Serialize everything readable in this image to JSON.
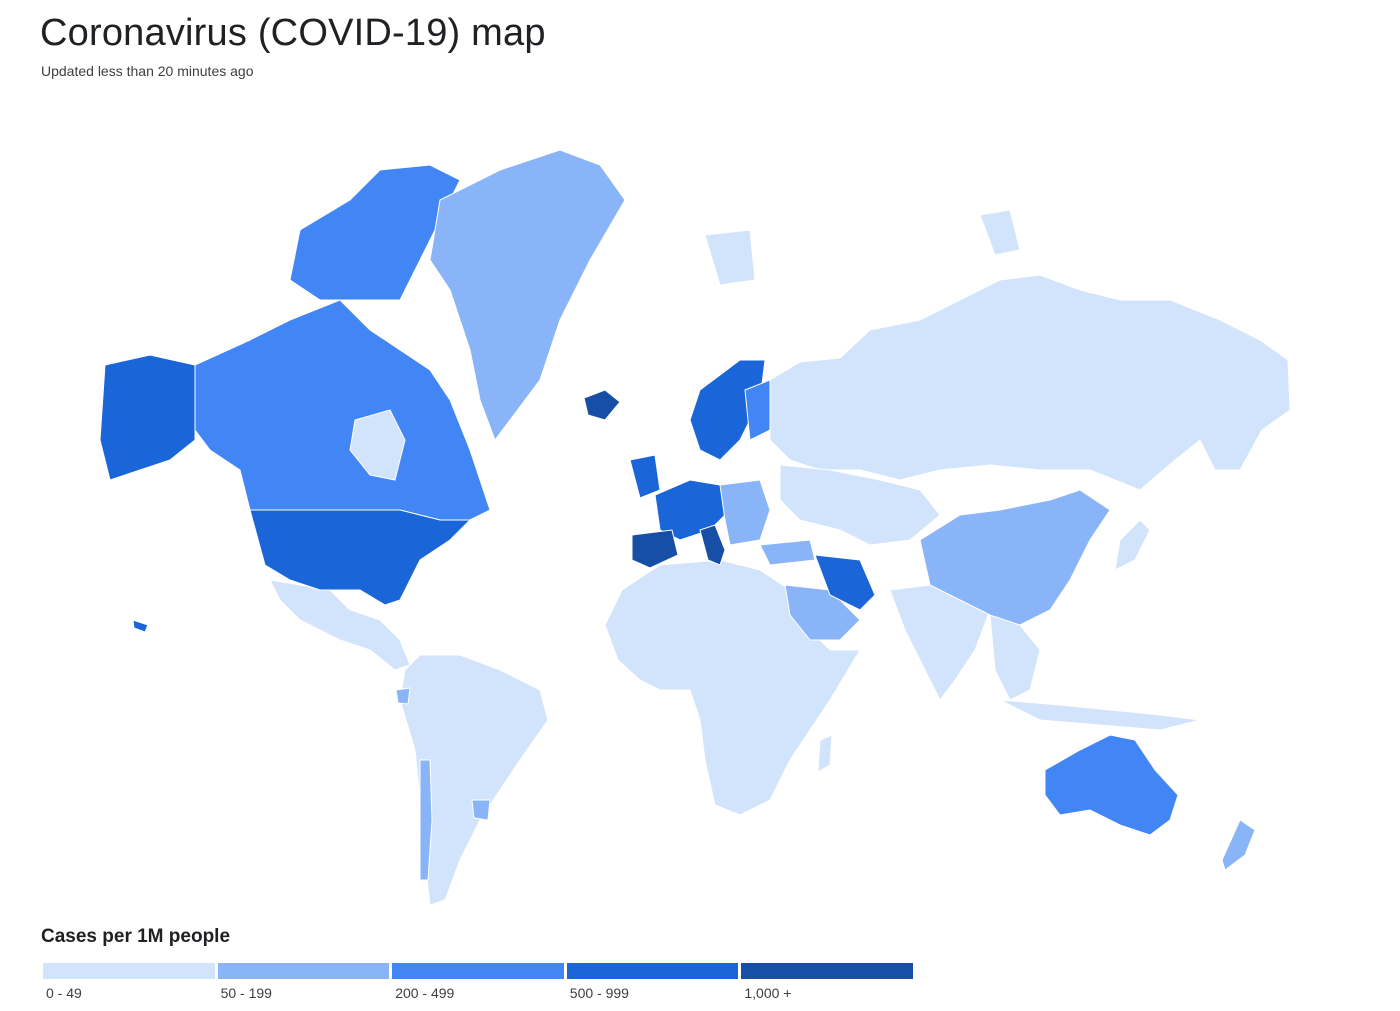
{
  "header": {
    "title": "Coronavirus (COVID-19) map",
    "subtitle": "Updated less than 20 minutes ago"
  },
  "legend": {
    "title": "Cases per 1M people",
    "buckets": [
      {
        "label": "0 - 49",
        "color": "#d2e3fc"
      },
      {
        "label": "50 - 199",
        "color": "#8ab4f8"
      },
      {
        "label": "200 - 499",
        "color": "#4285f4"
      },
      {
        "label": "500 - 999",
        "color": "#1a66d9"
      },
      {
        "label": "1,000 +",
        "color": "#174ea6"
      }
    ]
  },
  "colors": {
    "background": "#ffffff",
    "border": "#aab8cc"
  },
  "map": {
    "projection": "mercator",
    "regions": [
      {
        "name": "North America - Canada",
        "bucket": 2
      },
      {
        "name": "Greenland",
        "bucket": 1
      },
      {
        "name": "United States",
        "bucket": 3
      },
      {
        "name": "Alaska",
        "bucket": 3
      },
      {
        "name": "Mexico",
        "bucket": 0
      },
      {
        "name": "Central America",
        "bucket": 0
      },
      {
        "name": "South America",
        "bucket": 0
      },
      {
        "name": "Chile",
        "bucket": 1
      },
      {
        "name": "Western Europe",
        "bucket": 3
      },
      {
        "name": "Italy",
        "bucket": 4
      },
      {
        "name": "Spain",
        "bucket": 4
      },
      {
        "name": "Iceland",
        "bucket": 4
      },
      {
        "name": "Scandinavia",
        "bucket": 3
      },
      {
        "name": "Eastern Europe",
        "bucket": 1
      },
      {
        "name": "Russia",
        "bucket": 0
      },
      {
        "name": "Africa",
        "bucket": 0
      },
      {
        "name": "Middle East",
        "bucket": 1
      },
      {
        "name": "Iran",
        "bucket": 3
      },
      {
        "name": "China",
        "bucket": 1
      },
      {
        "name": "South Asia",
        "bucket": 0
      },
      {
        "name": "Southeast Asia",
        "bucket": 0
      },
      {
        "name": "Australia",
        "bucket": 2
      },
      {
        "name": "New Zealand",
        "bucket": 1
      }
    ]
  }
}
